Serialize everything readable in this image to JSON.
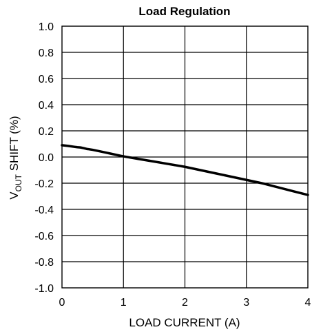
{
  "chart_data": {
    "type": "line",
    "title": "Load Regulation",
    "xlabel": "LOAD CURRENT (A)",
    "ylabel": {
      "main": "V",
      "subscript": "OUT",
      "rest": " SHIFT (%)"
    },
    "xlim": [
      0,
      4
    ],
    "ylim": [
      -1.0,
      1.0
    ],
    "x_ticks": [
      0,
      1,
      2,
      3,
      4
    ],
    "x_tick_labels": [
      "0",
      "1",
      "2",
      "3",
      "4"
    ],
    "y_ticks": [
      1.0,
      0.8,
      0.6,
      0.4,
      0.2,
      0.0,
      -0.2,
      -0.4,
      -0.6,
      -0.8,
      -1.0
    ],
    "y_tick_labels": [
      "1.0",
      "0.8",
      "0.6",
      "0.4",
      "0.2",
      "0.0",
      "-0.2",
      "-0.4",
      "-0.6",
      "-0.8",
      "-1.0"
    ],
    "grid": true,
    "series": [
      {
        "color": "#000000",
        "x": [
          0,
          0.1,
          0.2,
          0.25,
          0.3,
          0.35,
          0.4,
          0.5,
          0.6,
          0.7,
          0.8,
          0.9,
          1.0,
          1.25,
          1.5,
          1.75,
          2.0,
          2.25,
          2.5,
          2.75,
          3.0,
          3.25,
          3.5,
          3.75,
          4.0
        ],
        "y": [
          0.09,
          0.085,
          0.078,
          0.075,
          0.073,
          0.068,
          0.062,
          0.055,
          0.045,
          0.035,
          0.025,
          0.015,
          0.005,
          -0.015,
          -0.035,
          -0.055,
          -0.075,
          -0.1,
          -0.125,
          -0.15,
          -0.175,
          -0.2,
          -0.23,
          -0.26,
          -0.29
        ]
      }
    ]
  }
}
